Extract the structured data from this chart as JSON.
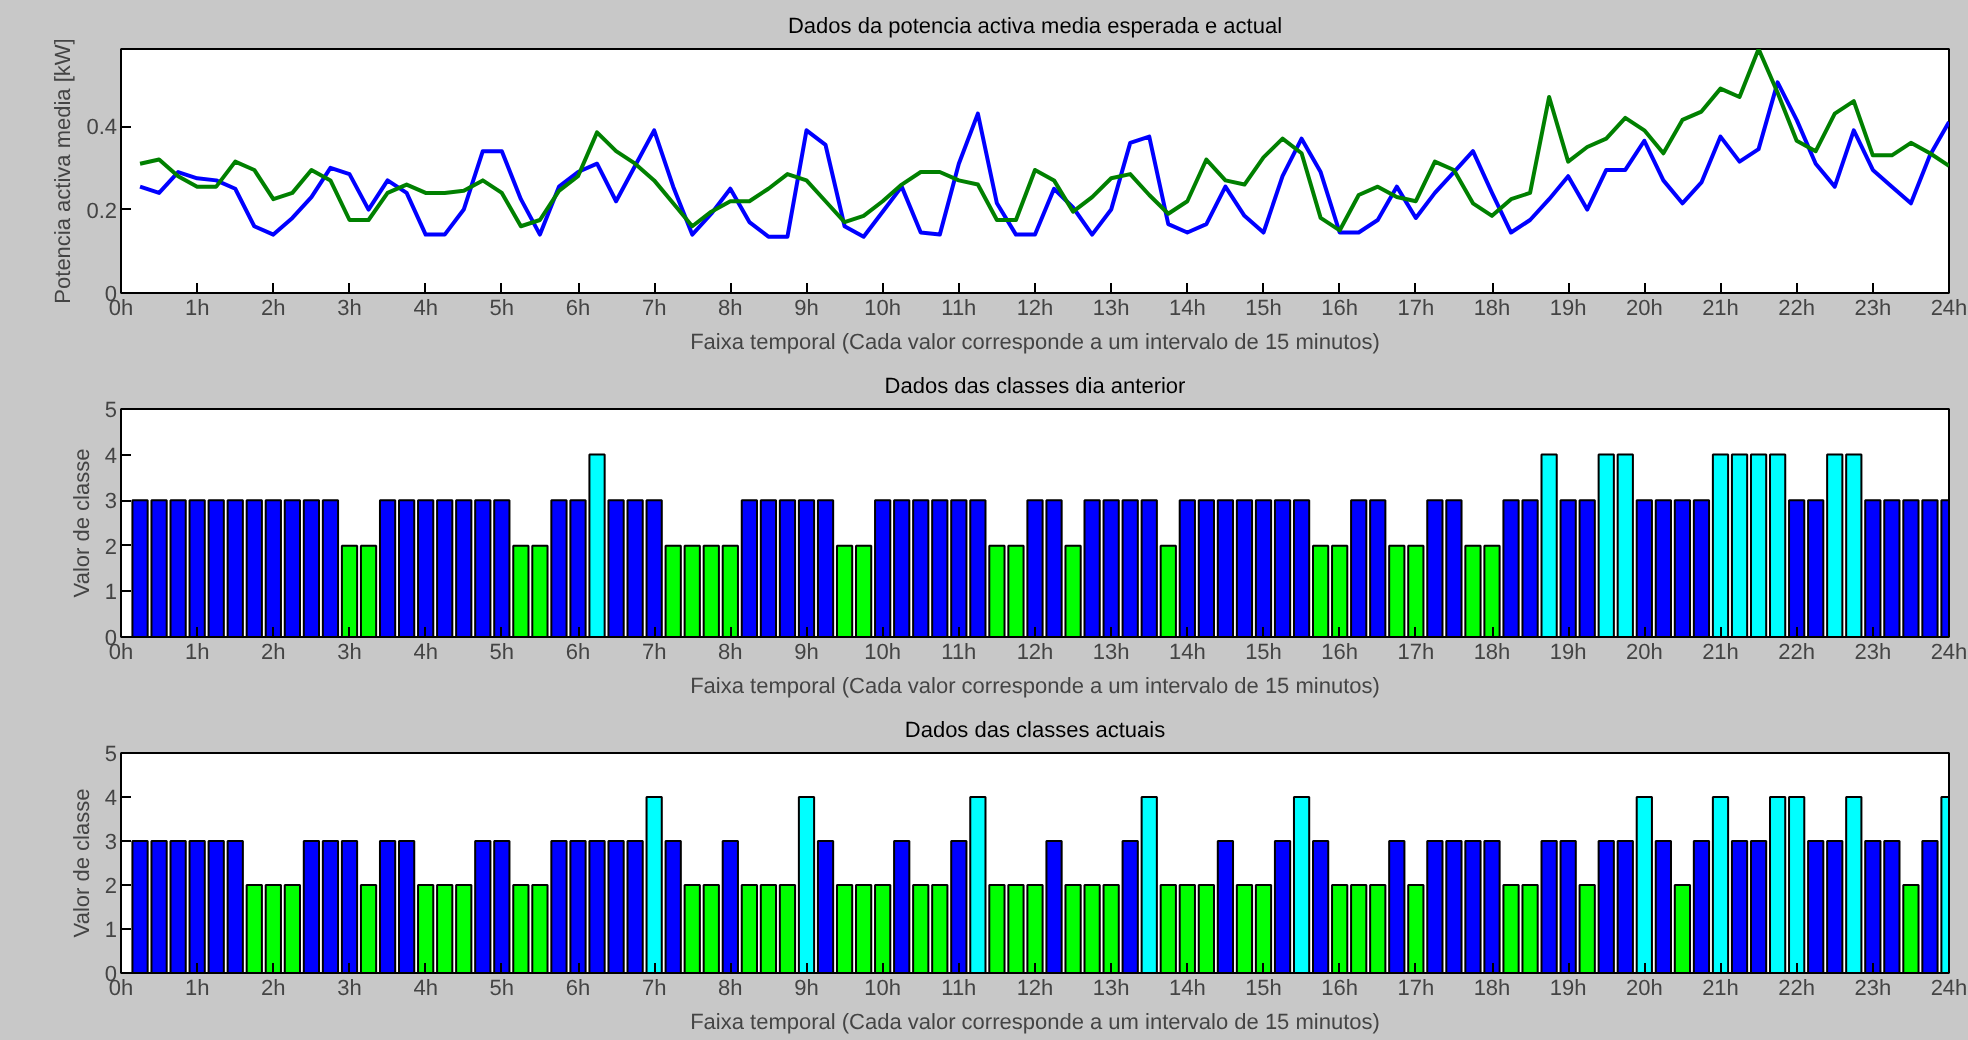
{
  "chart_data": [
    {
      "type": "line",
      "title": "Dados da potencia activa media esperada e actual",
      "xlabel": "Faixa temporal (Cada valor corresponde a um intervalo de 15 minutos)",
      "ylabel": "Potencia activa media [kW]",
      "x": [
        0.25,
        0.5,
        0.75,
        1,
        1.25,
        1.5,
        1.75,
        2,
        2.25,
        2.5,
        2.75,
        3,
        3.25,
        3.5,
        3.75,
        4,
        4.25,
        4.5,
        4.75,
        5,
        5.25,
        5.5,
        5.75,
        6,
        6.25,
        6.5,
        6.75,
        7,
        7.25,
        7.5,
        7.75,
        8,
        8.25,
        8.5,
        8.75,
        9,
        9.25,
        9.5,
        9.75,
        10,
        10.25,
        10.5,
        10.75,
        11,
        11.25,
        11.5,
        11.75,
        12,
        12.25,
        12.5,
        12.75,
        13,
        13.25,
        13.5,
        13.75,
        14,
        14.25,
        14.5,
        14.75,
        15,
        15.25,
        15.5,
        15.75,
        16,
        16.25,
        16.5,
        16.75,
        17,
        17.25,
        17.5,
        17.75,
        18,
        18.25,
        18.5,
        18.75,
        19,
        19.25,
        19.5,
        19.75,
        20,
        20.25,
        20.5,
        20.75,
        21,
        21.25,
        21.5,
        21.75,
        22,
        22.25,
        22.5,
        22.75,
        23,
        23.25,
        23.5,
        23.75,
        24
      ],
      "series": [
        {
          "color": "#0000ff",
          "values": [
            0.255,
            0.24,
            0.29,
            0.275,
            0.27,
            0.25,
            0.16,
            0.14,
            0.18,
            0.23,
            0.3,
            0.285,
            0.2,
            0.27,
            0.24,
            0.14,
            0.14,
            0.2,
            0.34,
            0.34,
            0.225,
            0.14,
            0.255,
            0.29,
            0.31,
            0.22,
            0.305,
            0.39,
            0.255,
            0.14,
            0.19,
            0.25,
            0.17,
            0.135,
            0.135,
            0.39,
            0.355,
            0.16,
            0.135,
            0.195,
            0.255,
            0.145,
            0.14,
            0.31,
            0.43,
            0.215,
            0.14,
            0.14,
            0.25,
            0.205,
            0.14,
            0.2,
            0.36,
            0.375,
            0.165,
            0.145,
            0.165,
            0.255,
            0.185,
            0.145,
            0.28,
            0.37,
            0.29,
            0.145,
            0.145,
            0.175,
            0.255,
            0.18,
            0.24,
            0.29,
            0.34,
            0.24,
            0.145,
            0.175,
            0.225,
            0.28,
            0.2,
            0.295,
            0.295,
            0.365,
            0.27,
            0.215,
            0.265,
            0.375,
            0.315,
            0.345,
            0.505,
            0.415,
            0.31,
            0.255,
            0.39,
            0.295,
            0.255,
            0.215,
            0.33,
            0.41
          ]
        },
        {
          "color": "#008000",
          "values": [
            0.31,
            0.32,
            0.28,
            0.255,
            0.255,
            0.315,
            0.295,
            0.225,
            0.24,
            0.295,
            0.27,
            0.175,
            0.175,
            0.24,
            0.26,
            0.24,
            0.24,
            0.245,
            0.27,
            0.24,
            0.16,
            0.175,
            0.245,
            0.28,
            0.385,
            0.34,
            0.31,
            0.27,
            0.215,
            0.16,
            0.195,
            0.22,
            0.22,
            0.25,
            0.285,
            0.27,
            0.22,
            0.17,
            0.185,
            0.22,
            0.26,
            0.29,
            0.29,
            0.27,
            0.26,
            0.175,
            0.175,
            0.295,
            0.27,
            0.195,
            0.23,
            0.275,
            0.285,
            0.235,
            0.19,
            0.22,
            0.32,
            0.27,
            0.26,
            0.325,
            0.37,
            0.335,
            0.18,
            0.15,
            0.235,
            0.255,
            0.23,
            0.22,
            0.315,
            0.295,
            0.215,
            0.185,
            0.225,
            0.24,
            0.47,
            0.315,
            0.35,
            0.37,
            0.42,
            0.39,
            0.335,
            0.415,
            0.435,
            0.49,
            0.47,
            0.585,
            0.48,
            0.365,
            0.34,
            0.43,
            0.46,
            0.33,
            0.33,
            0.36,
            0.335,
            0.305
          ]
        }
      ],
      "xlim": [
        0,
        24
      ],
      "xticks": [
        {
          "value": 0,
          "label": "0h"
        },
        {
          "value": 1,
          "label": "1h"
        },
        {
          "value": 2,
          "label": "2h"
        },
        {
          "value": 3,
          "label": "3h"
        },
        {
          "value": 4,
          "label": "4h"
        },
        {
          "value": 5,
          "label": "5h"
        },
        {
          "value": 6,
          "label": "6h"
        },
        {
          "value": 7,
          "label": "7h"
        },
        {
          "value": 8,
          "label": "8h"
        },
        {
          "value": 9,
          "label": "9h"
        },
        {
          "value": 10,
          "label": "10h"
        },
        {
          "value": 11,
          "label": "11h"
        },
        {
          "value": 12,
          "label": "12h"
        },
        {
          "value": 13,
          "label": "13h"
        },
        {
          "value": 14,
          "label": "14h"
        },
        {
          "value": 15,
          "label": "15h"
        },
        {
          "value": 16,
          "label": "16h"
        },
        {
          "value": 17,
          "label": "17h"
        },
        {
          "value": 18,
          "label": "18h"
        },
        {
          "value": 19,
          "label": "19h"
        },
        {
          "value": 20,
          "label": "20h"
        },
        {
          "value": 21,
          "label": "21h"
        },
        {
          "value": 22,
          "label": "22h"
        },
        {
          "value": 23,
          "label": "23h"
        },
        {
          "value": 24,
          "label": "24h"
        }
      ],
      "ylim": [
        0,
        0.585
      ],
      "yticks": [
        0,
        0.2,
        0.4
      ],
      "grid": false
    },
    {
      "type": "bar",
      "title": "Dados das classes dia anterior",
      "xlabel": "Faixa temporal (Cada valor corresponde a um intervalo de 15 minutos)",
      "ylabel": "Valor de classe",
      "x": [
        0.25,
        0.5,
        0.75,
        1,
        1.25,
        1.5,
        1.75,
        2,
        2.25,
        2.5,
        2.75,
        3,
        3.25,
        3.5,
        3.75,
        4,
        4.25,
        4.5,
        4.75,
        5,
        5.25,
        5.5,
        5.75,
        6,
        6.25,
        6.5,
        6.75,
        7,
        7.25,
        7.5,
        7.75,
        8,
        8.25,
        8.5,
        8.75,
        9,
        9.25,
        9.5,
        9.75,
        10,
        10.25,
        10.5,
        10.75,
        11,
        11.25,
        11.5,
        11.75,
        12,
        12.25,
        12.5,
        12.75,
        13,
        13.25,
        13.5,
        13.75,
        14,
        14.25,
        14.5,
        14.75,
        15,
        15.25,
        15.5,
        15.75,
        16,
        16.25,
        16.5,
        16.75,
        17,
        17.25,
        17.5,
        17.75,
        18,
        18.25,
        18.5,
        18.75,
        19,
        19.25,
        19.5,
        19.75,
        20,
        20.25,
        20.5,
        20.75,
        21,
        21.25,
        21.5,
        21.75,
        22,
        22.25,
        22.5,
        22.75,
        23,
        23.25,
        23.5,
        23.75,
        24
      ],
      "values": [
        3,
        3,
        3,
        3,
        3,
        3,
        3,
        3,
        3,
        3,
        3,
        2,
        2,
        3,
        3,
        3,
        3,
        3,
        3,
        3,
        2,
        2,
        3,
        3,
        4,
        3,
        3,
        3,
        2,
        2,
        2,
        2,
        3,
        3,
        3,
        3,
        3,
        2,
        2,
        3,
        3,
        3,
        3,
        3,
        3,
        2,
        2,
        3,
        3,
        2,
        3,
        3,
        3,
        3,
        2,
        3,
        3,
        3,
        3,
        3,
        3,
        3,
        2,
        2,
        3,
        3,
        2,
        2,
        3,
        3,
        2,
        2,
        3,
        3,
        4,
        3,
        3,
        4,
        4,
        3,
        3,
        3,
        3,
        4,
        4,
        4,
        4,
        3,
        3,
        4,
        4,
        3,
        3,
        3,
        3,
        3
      ],
      "colors": [
        "#0000ff",
        "#0000ff",
        "#0000ff",
        "#0000ff",
        "#0000ff",
        "#0000ff",
        "#0000ff",
        "#0000ff",
        "#0000ff",
        "#0000ff",
        "#0000ff",
        "#00ff00",
        "#00ff00",
        "#0000ff",
        "#0000ff",
        "#0000ff",
        "#0000ff",
        "#0000ff",
        "#0000ff",
        "#0000ff",
        "#00ff00",
        "#00ff00",
        "#0000ff",
        "#0000ff",
        "#00ffff",
        "#0000ff",
        "#0000ff",
        "#0000ff",
        "#00ff00",
        "#00ff00",
        "#00ff00",
        "#00ff00",
        "#0000ff",
        "#0000ff",
        "#0000ff",
        "#0000ff",
        "#0000ff",
        "#00ff00",
        "#00ff00",
        "#0000ff",
        "#0000ff",
        "#0000ff",
        "#0000ff",
        "#0000ff",
        "#0000ff",
        "#00ff00",
        "#00ff00",
        "#0000ff",
        "#0000ff",
        "#00ff00",
        "#0000ff",
        "#0000ff",
        "#0000ff",
        "#0000ff",
        "#00ff00",
        "#0000ff",
        "#0000ff",
        "#0000ff",
        "#0000ff",
        "#0000ff",
        "#0000ff",
        "#0000ff",
        "#00ff00",
        "#00ff00",
        "#0000ff",
        "#0000ff",
        "#00ff00",
        "#00ff00",
        "#0000ff",
        "#0000ff",
        "#00ff00",
        "#00ff00",
        "#0000ff",
        "#0000ff",
        "#00ffff",
        "#0000ff",
        "#0000ff",
        "#00ffff",
        "#00ffff",
        "#0000ff",
        "#0000ff",
        "#0000ff",
        "#0000ff",
        "#00ffff",
        "#00ffff",
        "#00ffff",
        "#00ffff",
        "#0000ff",
        "#0000ff",
        "#00ffff",
        "#00ffff",
        "#0000ff",
        "#0000ff",
        "#0000ff",
        "#0000ff",
        "#0000ff"
      ],
      "xlim": [
        0,
        24
      ],
      "xticks": [
        {
          "value": 0,
          "label": "0h"
        },
        {
          "value": 1,
          "label": "1h"
        },
        {
          "value": 2,
          "label": "2h"
        },
        {
          "value": 3,
          "label": "3h"
        },
        {
          "value": 4,
          "label": "4h"
        },
        {
          "value": 5,
          "label": "5h"
        },
        {
          "value": 6,
          "label": "6h"
        },
        {
          "value": 7,
          "label": "7h"
        },
        {
          "value": 8,
          "label": "8h"
        },
        {
          "value": 9,
          "label": "9h"
        },
        {
          "value": 10,
          "label": "10h"
        },
        {
          "value": 11,
          "label": "11h"
        },
        {
          "value": 12,
          "label": "12h"
        },
        {
          "value": 13,
          "label": "13h"
        },
        {
          "value": 14,
          "label": "14h"
        },
        {
          "value": 15,
          "label": "15h"
        },
        {
          "value": 16,
          "label": "16h"
        },
        {
          "value": 17,
          "label": "17h"
        },
        {
          "value": 18,
          "label": "18h"
        },
        {
          "value": 19,
          "label": "19h"
        },
        {
          "value": 20,
          "label": "20h"
        },
        {
          "value": 21,
          "label": "21h"
        },
        {
          "value": 22,
          "label": "22h"
        },
        {
          "value": 23,
          "label": "23h"
        },
        {
          "value": 24,
          "label": "24h"
        }
      ],
      "ylim": [
        0,
        5
      ],
      "yticks": [
        0,
        1,
        2,
        3,
        4,
        5
      ],
      "grid": false
    },
    {
      "type": "bar",
      "title": "Dados das classes actuais",
      "xlabel": "Faixa temporal (Cada valor corresponde a um intervalo de 15 minutos)",
      "ylabel": "Valor de classe",
      "x": [
        0.25,
        0.5,
        0.75,
        1,
        1.25,
        1.5,
        1.75,
        2,
        2.25,
        2.5,
        2.75,
        3,
        3.25,
        3.5,
        3.75,
        4,
        4.25,
        4.5,
        4.75,
        5,
        5.25,
        5.5,
        5.75,
        6,
        6.25,
        6.5,
        6.75,
        7,
        7.25,
        7.5,
        7.75,
        8,
        8.25,
        8.5,
        8.75,
        9,
        9.25,
        9.5,
        9.75,
        10,
        10.25,
        10.5,
        10.75,
        11,
        11.25,
        11.5,
        11.75,
        12,
        12.25,
        12.5,
        12.75,
        13,
        13.25,
        13.5,
        13.75,
        14,
        14.25,
        14.5,
        14.75,
        15,
        15.25,
        15.5,
        15.75,
        16,
        16.25,
        16.5,
        16.75,
        17,
        17.25,
        17.5,
        17.75,
        18,
        18.25,
        18.5,
        18.75,
        19,
        19.25,
        19.5,
        19.75,
        20,
        20.25,
        20.5,
        20.75,
        21,
        21.25,
        21.5,
        21.75,
        22,
        22.25,
        22.5,
        22.75,
        23,
        23.25,
        23.5,
        23.75,
        24
      ],
      "values": [
        3,
        3,
        3,
        3,
        3,
        3,
        2,
        2,
        2,
        3,
        3,
        3,
        2,
        3,
        3,
        2,
        2,
        2,
        3,
        3,
        2,
        2,
        3,
        3,
        3,
        3,
        3,
        4,
        3,
        2,
        2,
        3,
        2,
        2,
        2,
        4,
        3,
        2,
        2,
        2,
        3,
        2,
        2,
        3,
        4,
        2,
        2,
        2,
        3,
        2,
        2,
        2,
        3,
        4,
        2,
        2,
        2,
        3,
        2,
        2,
        3,
        4,
        3,
        2,
        2,
        2,
        3,
        2,
        3,
        3,
        3,
        3,
        2,
        2,
        3,
        3,
        2,
        3,
        3,
        4,
        3,
        2,
        3,
        4,
        3,
        3,
        4,
        4,
        3,
        3,
        4,
        3,
        3,
        2,
        3,
        4
      ],
      "colors": [
        "#0000ff",
        "#0000ff",
        "#0000ff",
        "#0000ff",
        "#0000ff",
        "#0000ff",
        "#00ff00",
        "#00ff00",
        "#00ff00",
        "#0000ff",
        "#0000ff",
        "#0000ff",
        "#00ff00",
        "#0000ff",
        "#0000ff",
        "#00ff00",
        "#00ff00",
        "#00ff00",
        "#0000ff",
        "#0000ff",
        "#00ff00",
        "#00ff00",
        "#0000ff",
        "#0000ff",
        "#0000ff",
        "#0000ff",
        "#0000ff",
        "#00ffff",
        "#0000ff",
        "#00ff00",
        "#00ff00",
        "#0000ff",
        "#00ff00",
        "#00ff00",
        "#00ff00",
        "#00ffff",
        "#0000ff",
        "#00ff00",
        "#00ff00",
        "#00ff00",
        "#0000ff",
        "#00ff00",
        "#00ff00",
        "#0000ff",
        "#00ffff",
        "#00ff00",
        "#00ff00",
        "#00ff00",
        "#0000ff",
        "#00ff00",
        "#00ff00",
        "#00ff00",
        "#0000ff",
        "#00ffff",
        "#00ff00",
        "#00ff00",
        "#00ff00",
        "#0000ff",
        "#00ff00",
        "#00ff00",
        "#0000ff",
        "#00ffff",
        "#0000ff",
        "#00ff00",
        "#00ff00",
        "#00ff00",
        "#0000ff",
        "#00ff00",
        "#0000ff",
        "#0000ff",
        "#0000ff",
        "#0000ff",
        "#00ff00",
        "#00ff00",
        "#0000ff",
        "#0000ff",
        "#00ff00",
        "#0000ff",
        "#0000ff",
        "#00ffff",
        "#0000ff",
        "#00ff00",
        "#0000ff",
        "#00ffff",
        "#0000ff",
        "#0000ff",
        "#00ffff",
        "#00ffff",
        "#0000ff",
        "#0000ff",
        "#00ffff",
        "#0000ff",
        "#0000ff",
        "#00ff00",
        "#0000ff",
        "#00ffff"
      ],
      "xlim": [
        0,
        24
      ],
      "xticks": [
        {
          "value": 0,
          "label": "0h"
        },
        {
          "value": 1,
          "label": "1h"
        },
        {
          "value": 2,
          "label": "2h"
        },
        {
          "value": 3,
          "label": "3h"
        },
        {
          "value": 4,
          "label": "4h"
        },
        {
          "value": 5,
          "label": "5h"
        },
        {
          "value": 6,
          "label": "6h"
        },
        {
          "value": 7,
          "label": "7h"
        },
        {
          "value": 8,
          "label": "8h"
        },
        {
          "value": 9,
          "label": "9h"
        },
        {
          "value": 10,
          "label": "10h"
        },
        {
          "value": 11,
          "label": "11h"
        },
        {
          "value": 12,
          "label": "12h"
        },
        {
          "value": 13,
          "label": "13h"
        },
        {
          "value": 14,
          "label": "14h"
        },
        {
          "value": 15,
          "label": "15h"
        },
        {
          "value": 16,
          "label": "16h"
        },
        {
          "value": 17,
          "label": "17h"
        },
        {
          "value": 18,
          "label": "18h"
        },
        {
          "value": 19,
          "label": "19h"
        },
        {
          "value": 20,
          "label": "20h"
        },
        {
          "value": 21,
          "label": "21h"
        },
        {
          "value": 22,
          "label": "22h"
        },
        {
          "value": 23,
          "label": "23h"
        },
        {
          "value": 24,
          "label": "24h"
        }
      ],
      "ylim": [
        0,
        5
      ],
      "yticks": [
        0,
        1,
        2,
        3,
        4,
        5
      ],
      "grid": false
    }
  ]
}
